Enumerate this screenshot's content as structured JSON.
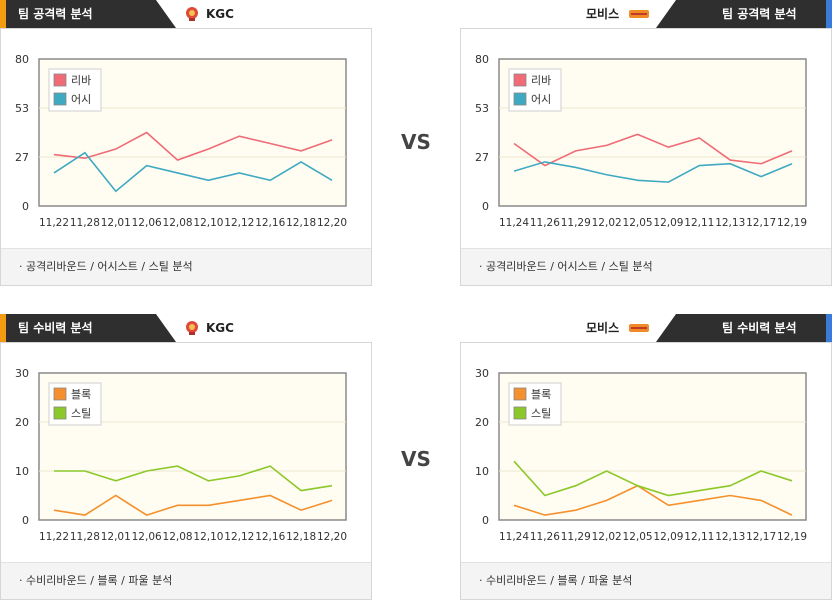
{
  "vs_label": "VS",
  "panels": [
    {
      "id": "tl",
      "side": "left",
      "header": {
        "title": "팀 공격력 분석",
        "team": "KGC",
        "stripe": "#f39c12"
      },
      "footer": "· 공격리바운드 / 어시스트 / 스틸 분석",
      "chart_data": {
        "type": "line",
        "categories": [
          "11,22",
          "11,28",
          "12,01",
          "12,06",
          "12,08",
          "12,10",
          "12,12",
          "12,16",
          "12,18",
          "12,20"
        ],
        "yticks": [
          "0",
          "27",
          "53",
          "80"
        ],
        "ylim": [
          0,
          80
        ],
        "series": [
          {
            "name": "리바",
            "color": "#ef6b76",
            "values": [
              28,
              26,
              31,
              40,
              25,
              31,
              38,
              34,
              30,
              36
            ]
          },
          {
            "name": "어시",
            "color": "#3fa9c2",
            "values": [
              18,
              29,
              8,
              22,
              18,
              14,
              18,
              14,
              24,
              14
            ]
          }
        ]
      }
    },
    {
      "id": "tr",
      "side": "right",
      "header": {
        "title": "팀 공격력 분석",
        "team": "모비스",
        "stripe": "#3a7ad8"
      },
      "footer": "· 공격리바운드 / 어시스트 / 스틸 분석",
      "chart_data": {
        "type": "line",
        "categories": [
          "11,24",
          "11,26",
          "11,29",
          "12,02",
          "12,05",
          "12,09",
          "12,11",
          "12,13",
          "12,17",
          "12,19"
        ],
        "yticks": [
          "0",
          "27",
          "53",
          "80"
        ],
        "ylim": [
          0,
          80
        ],
        "series": [
          {
            "name": "리바",
            "color": "#ef6b76",
            "values": [
              34,
              22,
              30,
              33,
              39,
              32,
              37,
              25,
              23,
              30
            ]
          },
          {
            "name": "어시",
            "color": "#3fa9c2",
            "values": [
              19,
              24,
              21,
              17,
              14,
              13,
              22,
              23,
              16,
              23
            ]
          }
        ]
      }
    },
    {
      "id": "bl",
      "side": "left",
      "header": {
        "title": "팀 수비력 분석",
        "team": "KGC",
        "stripe": "#f39c12"
      },
      "footer": "· 수비리바운드 / 블록 / 파울 분석",
      "chart_data": {
        "type": "line",
        "categories": [
          "11,22",
          "11,28",
          "12,01",
          "12,06",
          "12,08",
          "12,10",
          "12,12",
          "12,16",
          "12,18",
          "12,20"
        ],
        "yticks": [
          "0",
          "10",
          "20",
          "30"
        ],
        "ylim": [
          0,
          30
        ],
        "series": [
          {
            "name": "블록",
            "color": "#f5902e",
            "values": [
              2,
              1,
              5,
              1,
              3,
              3,
              4,
              5,
              2,
              4
            ]
          },
          {
            "name": "스틸",
            "color": "#8cc82a",
            "values": [
              10,
              10,
              8,
              10,
              11,
              8,
              9,
              11,
              6,
              7
            ]
          }
        ]
      }
    },
    {
      "id": "br",
      "side": "right",
      "header": {
        "title": "팀 수비력 분석",
        "team": "모비스",
        "stripe": "#3a7ad8"
      },
      "footer": "· 수비리바운드 / 블록 / 파울 분석",
      "chart_data": {
        "type": "line",
        "categories": [
          "11,24",
          "11,26",
          "11,29",
          "12,02",
          "12,05",
          "12,09",
          "12,11",
          "12,13",
          "12,17",
          "12,19"
        ],
        "yticks": [
          "0",
          "10",
          "20",
          "30"
        ],
        "ylim": [
          0,
          30
        ],
        "series": [
          {
            "name": "블록",
            "color": "#f5902e",
            "values": [
              3,
              1,
              2,
              4,
              7,
              3,
              4,
              5,
              4,
              1
            ]
          },
          {
            "name": "스틸",
            "color": "#8cc82a",
            "values": [
              12,
              5,
              7,
              10,
              7,
              5,
              6,
              7,
              10,
              8
            ]
          }
        ]
      }
    }
  ]
}
